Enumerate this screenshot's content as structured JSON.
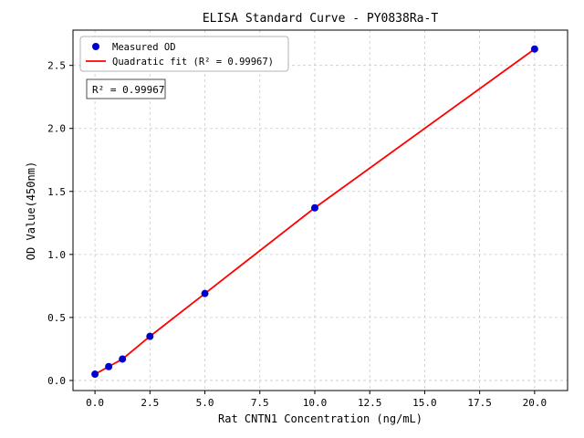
{
  "chart_data": {
    "type": "scatter",
    "title": "ELISA Standard Curve - PY0838Ra-T",
    "xlabel": "Rat CNTN1 Concentration (ng/mL)",
    "ylabel": "OD Value(450nm)",
    "xlim": [
      -1,
      21.5
    ],
    "ylim": [
      -0.08,
      2.78
    ],
    "xticks": [
      0,
      2.5,
      5,
      7.5,
      10,
      12.5,
      15,
      17.5,
      20
    ],
    "yticks": [
      0,
      0.5,
      1,
      1.5,
      2,
      2.5
    ],
    "grid": true,
    "legend_position": "upper-left",
    "annotation": "R² = 0.99967",
    "series": [
      {
        "name": "Measured OD",
        "type": "scatter",
        "color": "#0000cd",
        "x": [
          0,
          0.625,
          1.25,
          2.5,
          5,
          10,
          20
        ],
        "y": [
          0.05,
          0.11,
          0.17,
          0.35,
          0.69,
          1.37,
          2.63
        ]
      },
      {
        "name": "Quadratic fit (R² = 0.99967)",
        "type": "line",
        "color": "#ff0000",
        "x": [
          0,
          0.625,
          1.25,
          2.5,
          5,
          10,
          20
        ],
        "y": [
          0.05,
          0.11,
          0.17,
          0.35,
          0.69,
          1.37,
          2.63
        ]
      }
    ]
  }
}
